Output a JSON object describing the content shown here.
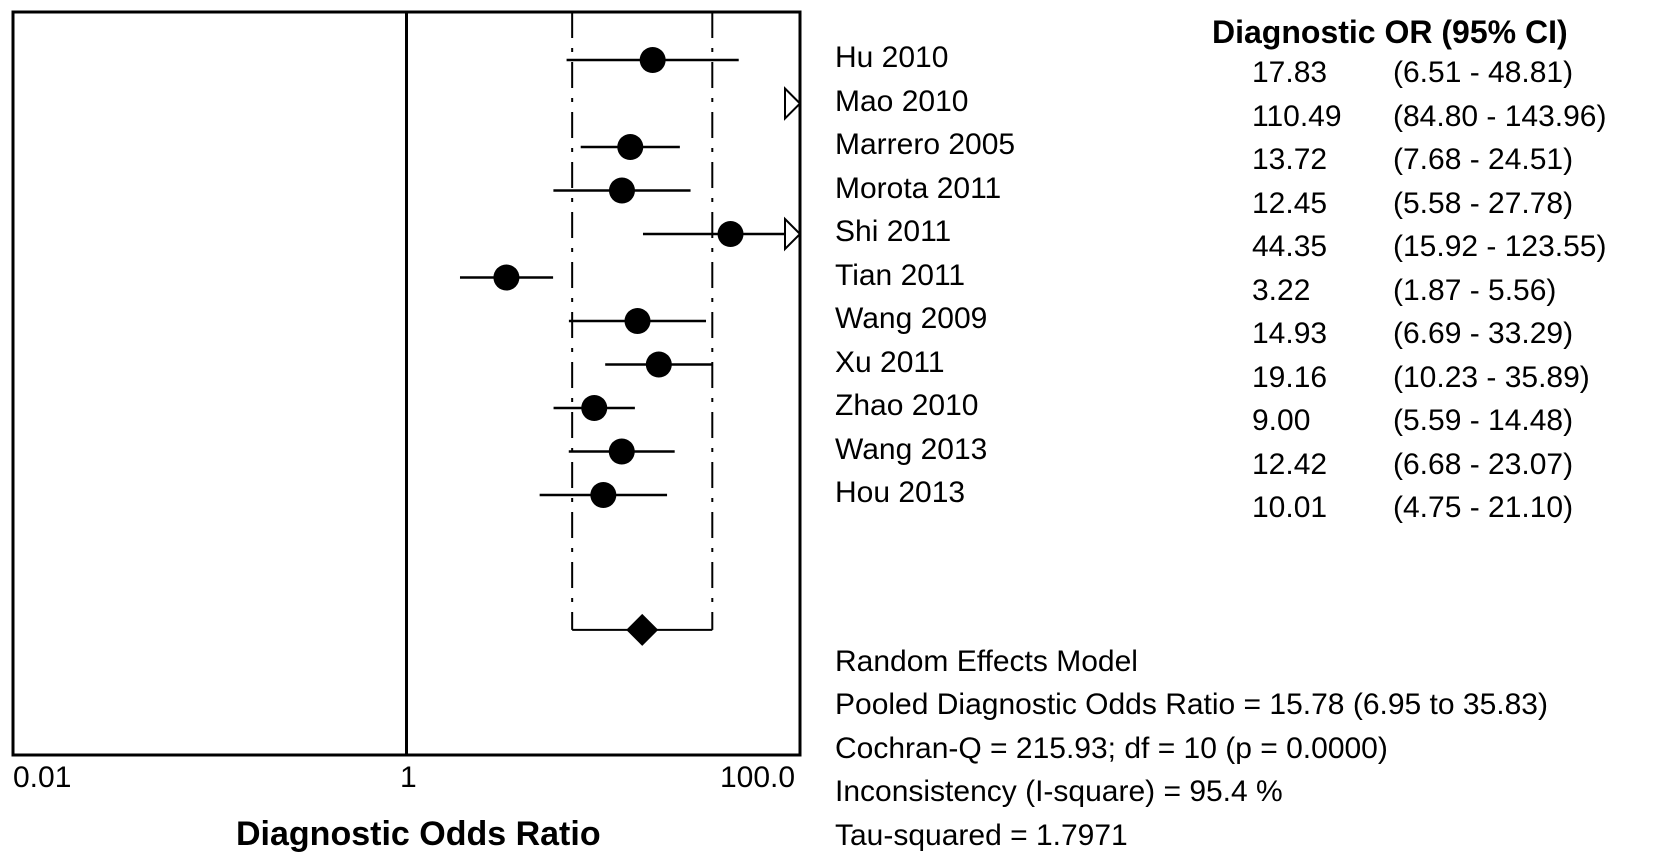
{
  "chart_data": {
    "type": "forest",
    "header": "Diagnostic OR (95% CI)",
    "xlabel": "Diagnostic Odds Ratio",
    "xscale": "log",
    "xlim": [
      0.01,
      100.0
    ],
    "xtick_labels": [
      "0.01",
      "1",
      "100.0"
    ],
    "xticks": [
      0.01,
      1,
      100
    ],
    "reference_line": 1,
    "pooled_ci_dashed_lines": [
      6.95,
      35.83
    ],
    "studies": [
      {
        "name": "Hu 2010",
        "or": 17.83,
        "lo": 6.51,
        "hi": 48.81,
        "or_text": "17.83",
        "ci_text": "(6.51 - 48.81)"
      },
      {
        "name": "Mao 2010",
        "or": 110.49,
        "lo": 84.8,
        "hi": 143.96,
        "or_text": "110.49",
        "ci_text": "(84.80 - 143.96)",
        "off_scale": true
      },
      {
        "name": "Marrero 2005",
        "or": 13.72,
        "lo": 7.68,
        "hi": 24.51,
        "or_text": "13.72",
        "ci_text": "(7.68 - 24.51)"
      },
      {
        "name": "Morota 2011",
        "or": 12.45,
        "lo": 5.58,
        "hi": 27.78,
        "or_text": "12.45",
        "ci_text": "(5.58 - 27.78)"
      },
      {
        "name": "Shi 2011",
        "or": 44.35,
        "lo": 15.92,
        "hi": 123.55,
        "or_text": "44.35",
        "ci_text": "(15.92 - 123.55)",
        "arrow_right": true
      },
      {
        "name": "Tian 2011",
        "or": 3.22,
        "lo": 1.87,
        "hi": 5.56,
        "or_text": "3.22",
        "ci_text": "(1.87 - 5.56)"
      },
      {
        "name": "Wang 2009",
        "or": 14.93,
        "lo": 6.69,
        "hi": 33.29,
        "or_text": "14.93",
        "ci_text": "(6.69 - 33.29)"
      },
      {
        "name": "Xu 2011",
        "or": 19.16,
        "lo": 10.23,
        "hi": 35.89,
        "or_text": "19.16",
        "ci_text": "(10.23 - 35.89)"
      },
      {
        "name": "Zhao 2010",
        "or": 9.0,
        "lo": 5.59,
        "hi": 14.48,
        "or_text": "9.00",
        "ci_text": "(5.59 - 14.48)"
      },
      {
        "name": "Wang 2013",
        "or": 12.42,
        "lo": 6.68,
        "hi": 23.07,
        "or_text": "12.42",
        "ci_text": "(6.68 - 23.07)"
      },
      {
        "name": "Hou 2013",
        "or": 10.01,
        "lo": 4.75,
        "hi": 21.1,
        "or_text": "10.01",
        "ci_text": "(4.75 - 21.10)"
      }
    ],
    "pooled": {
      "or": 15.78,
      "lo": 6.95,
      "hi": 35.83
    },
    "stats": {
      "model": "Random Effects Model",
      "pooled_text": "Pooled Diagnostic Odds Ratio = 15.78 (6.95 to 35.83)",
      "cochran_text": "Cochran-Q = 215.93; df =  10 (p = 0.0000)",
      "inconsistency_text": "Inconsistency (I-square) = 95.4 %",
      "tau_text": "Tau-squared = 1.7971"
    }
  }
}
